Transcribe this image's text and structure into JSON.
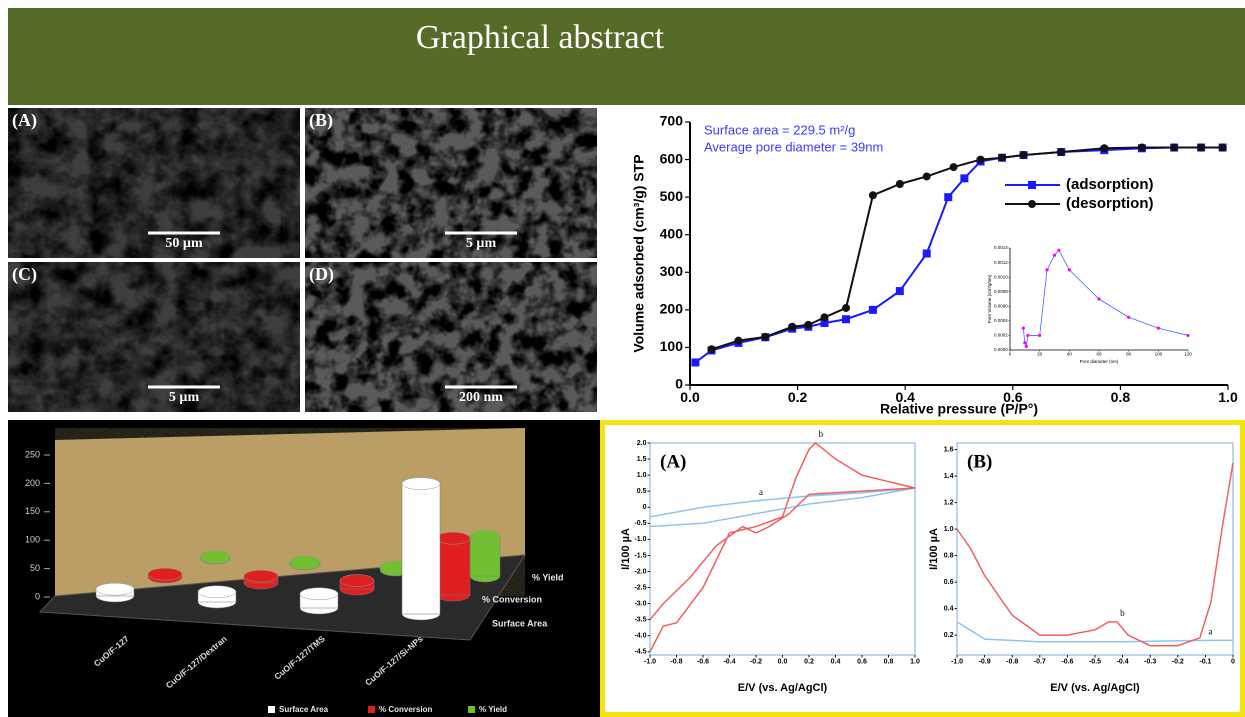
{
  "header": {
    "title": "Graphical abstract"
  },
  "sem_panels": [
    {
      "label": "(A)",
      "scale_bar": "50 µm"
    },
    {
      "label": "(B)",
      "scale_bar": "5 µm"
    },
    {
      "label": "(C)",
      "scale_bar": "5 µm"
    },
    {
      "label": "(D)",
      "scale_bar": "200 nm"
    }
  ],
  "chart_data": [
    {
      "type": "line",
      "annotations": [
        "Surface area = 229.5 m²/g",
        "Average pore diameter = 39nm"
      ],
      "annotation_color": "#3a3aff",
      "xlabel": "Relative pressure (P/P°)",
      "ylabel": "Volume adsorbed (cm³/g) STP",
      "xlim": [
        0,
        1
      ],
      "xticks": [
        {
          "value": 0,
          "label": "0.0"
        },
        0.2,
        0.4,
        0.6,
        0.8,
        {
          "value": 1,
          "label": "1.0"
        }
      ],
      "ylim": [
        0,
        700
      ],
      "yticks": [
        0,
        100,
        200,
        300,
        400,
        500,
        600,
        700
      ],
      "legend": "center-right",
      "series": [
        {
          "name": "(adsorption)",
          "color": "#1a1aff",
          "marker": "square",
          "x": [
            0.01,
            0.04,
            0.09,
            0.14,
            0.19,
            0.22,
            0.25,
            0.29,
            0.34,
            0.39,
            0.44,
            0.48,
            0.51,
            0.54,
            0.58,
            0.62,
            0.69,
            0.77,
            0.84,
            0.9,
            0.95,
            0.99
          ],
          "values": [
            60,
            92,
            112,
            127,
            150,
            155,
            165,
            175,
            200,
            250,
            350,
            500,
            550,
            595,
            605,
            612,
            620,
            625,
            630,
            632,
            632,
            632
          ]
        },
        {
          "name": "(desorption)",
          "color": "#111111",
          "marker": "circle",
          "x": [
            0.04,
            0.09,
            0.14,
            0.19,
            0.22,
            0.25,
            0.29,
            0.34,
            0.39,
            0.44,
            0.49,
            0.54,
            0.58,
            0.62,
            0.69,
            0.77,
            0.84,
            0.9,
            0.95,
            0.99
          ],
          "values": [
            95,
            118,
            128,
            155,
            160,
            180,
            205,
            505,
            535,
            555,
            580,
            600,
            605,
            612,
            620,
            630,
            632,
            632,
            632,
            632
          ]
        }
      ]
    },
    {
      "type": "line",
      "xlabel": "Pore diameter (nm)",
      "ylabel": "Pore Volume (cm³/g/nm)",
      "xlim": [
        0,
        120
      ],
      "xticks": [
        0,
        20,
        40,
        60,
        80,
        100,
        120
      ],
      "ylim": [
        0,
        0.0014
      ],
      "yticks": [
        {
          "value": 0,
          "label": "0.0000"
        },
        {
          "value": 0.0002,
          "label": "0.0002"
        },
        {
          "value": 0.0004,
          "label": "0.0004"
        },
        {
          "value": 0.0006,
          "label": "0.0006"
        },
        {
          "value": 0.0008,
          "label": "0.0008"
        },
        {
          "value": 0.001,
          "label": "0.0010"
        },
        {
          "value": 0.0012,
          "label": "0.0012"
        },
        {
          "value": 0.0014,
          "label": "0.0014"
        }
      ],
      "series": [
        {
          "color": "#5060ff",
          "marker": "dot",
          "marker_color": "#ff00ff",
          "x": [
            9,
            10,
            11,
            12,
            20,
            25,
            30,
            33,
            40,
            60,
            80,
            100,
            120
          ],
          "values": [
            0.0003,
            0.0001,
            5e-05,
            0.0002,
            0.0002,
            0.0011,
            0.0013,
            0.00137,
            0.0011,
            0.0007,
            0.00045,
            0.0003,
            0.0002
          ]
        }
      ]
    },
    {
      "type": "bar3d",
      "categories": [
        "CuO/F-127",
        "CuO/F-127/Dextran",
        "CuO/F-127/TMS",
        "CuO/F-127/Si-NPs"
      ],
      "ylim": [
        0,
        250
      ],
      "yticks": [
        0,
        50,
        100,
        150,
        200,
        250
      ],
      "legend": "bottom",
      "series": [
        {
          "name": "Surface Area",
          "color": "#ffffff",
          "values": [
            12,
            18,
            25,
            229.5
          ]
        },
        {
          "name": "% Conversion",
          "color": "#e02020",
          "values": [
            5,
            12,
            15,
            100
          ]
        },
        {
          "name": "% Yield",
          "color": "#70c030",
          "values": [
            2,
            4,
            5,
            70
          ]
        }
      ]
    },
    {
      "type": "line",
      "panel_label": "(A)",
      "xlabel": "E/V (vs. Ag/AgCl)",
      "ylabel": "I/100 µA",
      "xlim": [
        -1,
        1
      ],
      "xticks": [
        {
          "value": -1,
          "label": "-1.0"
        },
        -0.8,
        -0.6,
        -0.4,
        -0.2,
        {
          "value": 0,
          "label": "0.0"
        },
        0.2,
        0.4,
        0.6,
        0.8,
        {
          "value": 1,
          "label": "1.0"
        }
      ],
      "ylim": [
        -4.6,
        2.0
      ],
      "yticks": [
        {
          "value": 2,
          "label": "2.0"
        },
        1.5,
        {
          "value": 1,
          "label": "1.0"
        },
        0.5,
        0,
        -0.5,
        {
          "value": -1,
          "label": "-1.0"
        },
        -1.5,
        {
          "value": -2,
          "label": "-2.0"
        },
        -2.5,
        {
          "value": -3,
          "label": "-3.0"
        },
        -3.5,
        {
          "value": -4,
          "label": "-4.0"
        },
        -4.5
      ],
      "series": [
        {
          "name": "a",
          "color": "#8fc3ee",
          "x": [
            -1,
            -0.6,
            -0.2,
            0.2,
            0.6,
            1,
            0.6,
            0.2,
            -0.2,
            -0.6,
            -1
          ],
          "values": [
            -0.3,
            0,
            0.2,
            0.35,
            0.45,
            0.6,
            0.3,
            0.1,
            -0.2,
            -0.5,
            -0.6
          ]
        },
        {
          "name": "b",
          "color": "#f06060",
          "x": [
            -1,
            -0.9,
            -0.8,
            -0.6,
            -0.4,
            -0.2,
            0,
            0.1,
            0.2,
            0.25,
            0.4,
            0.6,
            0.8,
            1,
            0.6,
            0.2,
            0.05,
            -0.1,
            -0.2,
            -0.3,
            -0.5,
            -0.7,
            -0.9,
            -1
          ],
          "values": [
            -4.5,
            -3.7,
            -3.6,
            -2.5,
            -0.8,
            -0.6,
            -0.3,
            0.9,
            1.8,
            2.0,
            1.5,
            1.0,
            0.8,
            0.6,
            0.5,
            0.4,
            -0.2,
            -0.6,
            -0.8,
            -0.6,
            -1.2,
            -2.2,
            -3.0,
            -3.5
          ]
        }
      ]
    },
    {
      "type": "line",
      "panel_label": "(B)",
      "xlabel": "E/V (vs. Ag/AgCl)",
      "ylabel": "I/100 µA",
      "xlim": [
        -1,
        0
      ],
      "xticks": [
        {
          "value": -1,
          "label": "-1.0"
        },
        -0.9,
        -0.8,
        -0.7,
        -0.6,
        -0.5,
        -0.4,
        -0.3,
        -0.2,
        -0.1,
        0
      ],
      "ylim": [
        0.05,
        1.65
      ],
      "yticks": [
        0.2,
        0.4,
        0.6,
        0.8,
        {
          "value": 1,
          "label": "1.0"
        },
        1.2,
        1.4,
        1.6
      ],
      "series": [
        {
          "name": "a",
          "color": "#8fc3ee",
          "x": [
            -1,
            -0.9,
            -0.7,
            -0.4,
            -0.1,
            0
          ],
          "values": [
            0.3,
            0.17,
            0.15,
            0.15,
            0.16,
            0.16
          ]
        },
        {
          "name": "b",
          "color": "#f06060",
          "x": [
            -1,
            -0.95,
            -0.9,
            -0.8,
            -0.7,
            -0.6,
            -0.5,
            -0.45,
            -0.42,
            -0.38,
            -0.3,
            -0.2,
            -0.12,
            -0.08,
            -0.04,
            0
          ],
          "values": [
            1.0,
            0.85,
            0.65,
            0.35,
            0.2,
            0.2,
            0.24,
            0.3,
            0.3,
            0.2,
            0.12,
            0.12,
            0.18,
            0.45,
            1.0,
            1.5
          ]
        }
      ]
    }
  ]
}
